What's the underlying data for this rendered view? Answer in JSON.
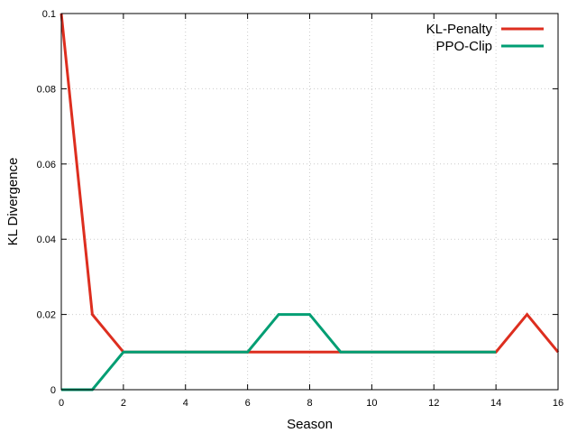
{
  "chart_data": {
    "type": "line",
    "title": "",
    "xlabel": "Season",
    "ylabel": "KL Divergence",
    "xlim": [
      0,
      16
    ],
    "ylim": [
      0,
      0.1
    ],
    "xticks": [
      0,
      2,
      4,
      6,
      8,
      10,
      12,
      14,
      16
    ],
    "yticks": [
      0,
      0.02,
      0.04,
      0.06,
      0.08,
      0.1
    ],
    "grid": true,
    "legend_position": "top-right",
    "x": [
      0,
      1,
      2,
      3,
      4,
      5,
      6,
      7,
      8,
      9,
      10,
      11,
      12,
      13,
      14,
      15,
      16
    ],
    "series": [
      {
        "name": "KL-Penalty",
        "color": "#dd2e1f",
        "values": [
          0.1,
          0.02,
          0.01,
          0.01,
          0.01,
          0.01,
          0.01,
          0.01,
          0.01,
          0.01,
          0.01,
          0.01,
          0.01,
          0.01,
          0.01,
          0.02,
          0.01
        ]
      },
      {
        "name": "PPO-Clip",
        "color": "#009e73",
        "values": [
          0,
          0,
          0.01,
          0.01,
          0.01,
          0.01,
          0.01,
          0.02,
          0.02,
          0.01,
          0.01,
          0.01,
          0.01,
          0.01,
          0.01,
          null,
          null
        ]
      }
    ]
  }
}
